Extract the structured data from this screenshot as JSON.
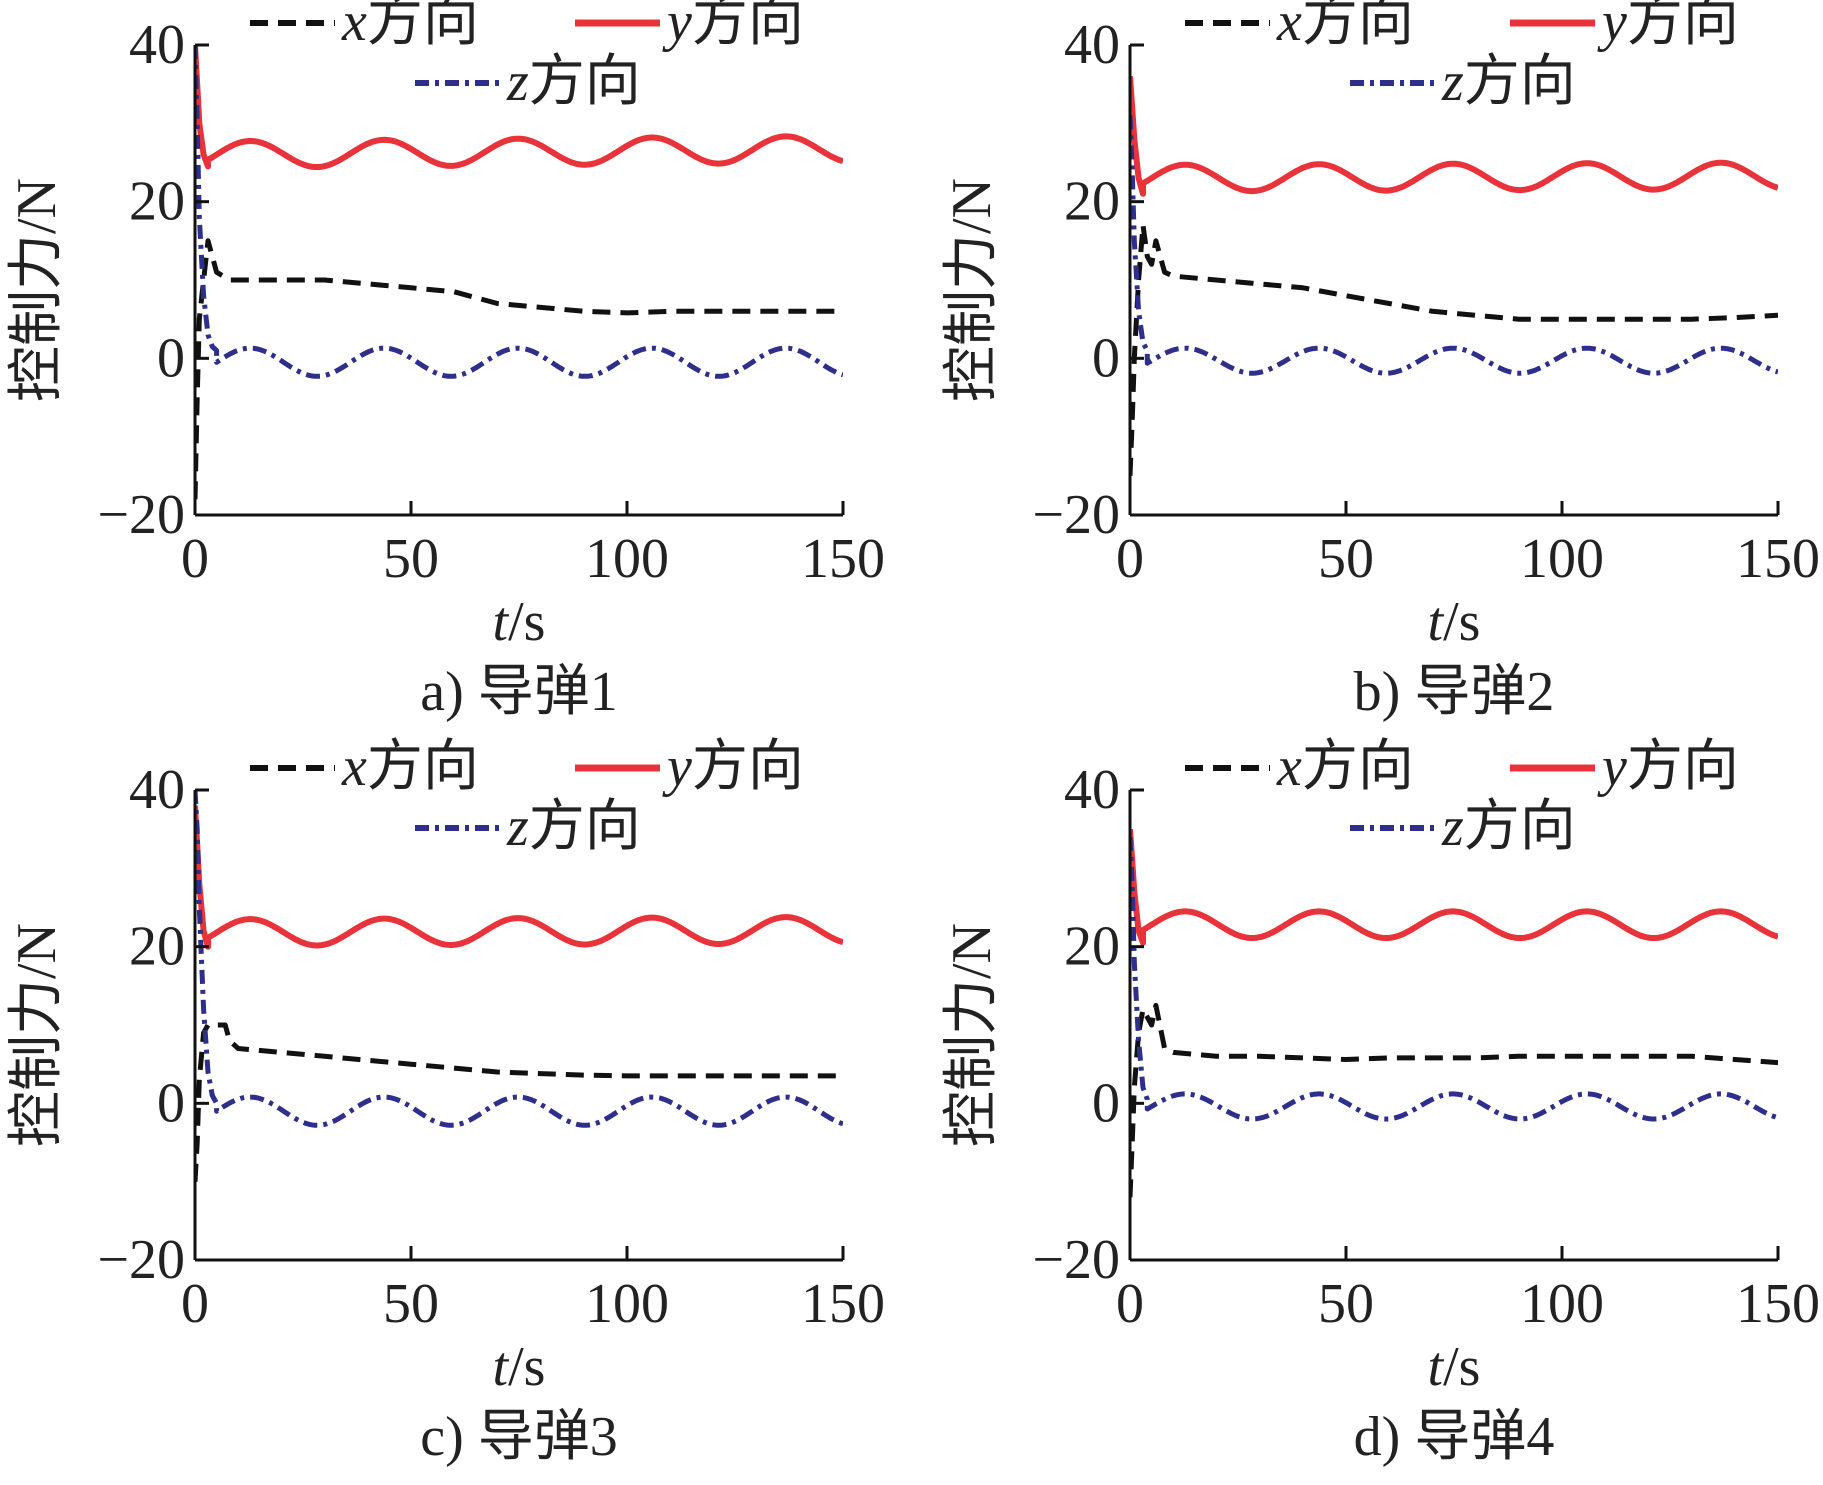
{
  "colors": {
    "x": "#111111",
    "y": "#e8333a",
    "z": "#2e2e8c",
    "axis": "#111111"
  },
  "legend": {
    "x": "x方向",
    "y": "y方向",
    "z": "z方向"
  },
  "chart_data": [
    {
      "type": "line",
      "caption": "a) 导弹1",
      "xlabel": "t/s",
      "ylabel": "控制力/N",
      "xlim": [
        0,
        150
      ],
      "ylim": [
        -20,
        40
      ],
      "xticks": [
        0,
        50,
        100,
        150
      ],
      "yticks": [
        -20,
        0,
        20,
        40
      ],
      "legend": "top",
      "series": [
        {
          "name": "x方向",
          "dash": "dashed",
          "x": [
            0,
            0.5,
            1,
            2,
            3,
            4,
            5,
            8,
            10,
            20,
            30,
            40,
            50,
            60,
            70,
            80,
            90,
            100,
            110,
            120,
            130,
            140,
            150
          ],
          "y": [
            -18,
            -5,
            5,
            10,
            15,
            13,
            11,
            10,
            10,
            10,
            10,
            9.5,
            9,
            8.5,
            7,
            6.5,
            6,
            5.8,
            6,
            6,
            6,
            6,
            6
          ]
        },
        {
          "name": "y方向",
          "dash": "solid",
          "x": [
            0,
            0.5,
            1,
            2,
            3
          ],
          "y": [
            40,
            35,
            30,
            26,
            24.5
          ],
          "wave": {
            "start": 3,
            "end": 150,
            "center": 26,
            "amp": 1.7,
            "period": 31,
            "phase": 160,
            "drift": 0.7
          }
        },
        {
          "name": "z方向",
          "dash": "dashdot",
          "x": [
            0,
            0.5,
            1,
            2,
            3,
            4,
            5
          ],
          "y": [
            40,
            30,
            18,
            8,
            3,
            1.5,
            1
          ],
          "wave": {
            "start": 5,
            "end": 150,
            "center": -0.5,
            "amp": 1.8,
            "period": 31,
            "phase": 160,
            "drift": 0
          }
        }
      ]
    },
    {
      "type": "line",
      "caption": "b) 导弹2",
      "xlabel": "t/s",
      "ylabel": "控制力/N",
      "xlim": [
        0,
        150
      ],
      "ylim": [
        -20,
        40
      ],
      "xticks": [
        0,
        50,
        100,
        150
      ],
      "yticks": [
        -20,
        0,
        20,
        40
      ],
      "legend": "top",
      "series": [
        {
          "name": "x方向",
          "dash": "dashed",
          "x": [
            0,
            0.5,
            1,
            2,
            3,
            4,
            5,
            6,
            8,
            10,
            20,
            30,
            40,
            50,
            60,
            70,
            80,
            90,
            100,
            110,
            120,
            130,
            140,
            150
          ],
          "y": [
            -15,
            -8,
            0,
            10,
            17,
            13,
            12,
            15,
            11,
            10.5,
            10,
            9.5,
            9,
            8,
            7,
            6,
            5.5,
            5,
            5,
            5,
            5,
            5,
            5.2,
            5.5
          ]
        },
        {
          "name": "y方向",
          "dash": "solid",
          "x": [
            0,
            0.5,
            1,
            2,
            3
          ],
          "y": [
            36,
            32,
            28,
            23,
            21
          ],
          "wave": {
            "start": 3,
            "end": 150,
            "center": 23,
            "amp": 1.7,
            "period": 31,
            "phase": 160,
            "drift": 0.3
          }
        },
        {
          "name": "z方向",
          "dash": "dashdot",
          "x": [
            0,
            0.5,
            1,
            2,
            3,
            4
          ],
          "y": [
            31,
            24,
            15,
            6,
            2,
            1
          ],
          "wave": {
            "start": 4,
            "end": 150,
            "center": -0.3,
            "amp": 1.6,
            "period": 31,
            "phase": 160,
            "drift": 0
          }
        }
      ]
    },
    {
      "type": "line",
      "caption": "c) 导弹3",
      "xlabel": "t/s",
      "ylabel": "控制力/N",
      "xlim": [
        0,
        150
      ],
      "ylim": [
        -20,
        40
      ],
      "xticks": [
        0,
        50,
        100,
        150
      ],
      "yticks": [
        -20,
        0,
        20,
        40
      ],
      "legend": "top",
      "series": [
        {
          "name": "x方向",
          "dash": "dashed",
          "x": [
            0,
            0.5,
            1,
            2,
            3,
            5,
            7,
            8,
            10,
            20,
            30,
            40,
            50,
            60,
            70,
            80,
            90,
            100,
            110,
            120,
            130,
            140,
            150
          ],
          "y": [
            -10,
            -5,
            3,
            9,
            10,
            10,
            10,
            8,
            7,
            6.5,
            6,
            5.5,
            5,
            4.5,
            4,
            3.8,
            3.6,
            3.5,
            3.5,
            3.5,
            3.5,
            3.5,
            3.5
          ]
        },
        {
          "name": "y方向",
          "dash": "solid",
          "x": [
            0,
            0.5,
            1,
            2,
            3
          ],
          "y": [
            38,
            33,
            28,
            22,
            20
          ],
          "wave": {
            "start": 3,
            "end": 150,
            "center": 21.8,
            "amp": 1.7,
            "period": 31,
            "phase": 160,
            "drift": 0.3
          }
        },
        {
          "name": "z方向",
          "dash": "dashdot",
          "x": [
            0,
            0.5,
            1,
            2,
            3,
            4,
            5
          ],
          "y": [
            40,
            35,
            25,
            12,
            4,
            1,
            0
          ],
          "wave": {
            "start": 5,
            "end": 150,
            "center": -1,
            "amp": 1.8,
            "period": 31,
            "phase": 160,
            "drift": 0
          }
        }
      ]
    },
    {
      "type": "line",
      "caption": "d) 导弹4",
      "xlabel": "t/s",
      "ylabel": "控制力/N",
      "xlim": [
        0,
        150
      ],
      "ylim": [
        -20,
        40
      ],
      "xticks": [
        0,
        50,
        100,
        150
      ],
      "yticks": [
        -20,
        0,
        20,
        40
      ],
      "legend": "top",
      "series": [
        {
          "name": "x方向",
          "dash": "dashed",
          "x": [
            0,
            0.5,
            1,
            2,
            3,
            4,
            5,
            6,
            8,
            10,
            20,
            30,
            40,
            50,
            60,
            70,
            80,
            90,
            100,
            110,
            120,
            130,
            140,
            150
          ],
          "y": [
            -12,
            -5,
            2,
            9,
            12,
            11,
            10,
            12.5,
            7,
            6.5,
            6,
            6,
            5.8,
            5.6,
            5.8,
            5.8,
            5.8,
            6,
            6,
            6,
            6,
            6,
            5.6,
            5.2
          ]
        },
        {
          "name": "y方向",
          "dash": "solid",
          "x": [
            0,
            0.5,
            1,
            2,
            3
          ],
          "y": [
            35,
            31,
            27,
            22,
            20.5
          ],
          "wave": {
            "start": 3,
            "end": 150,
            "center": 22.8,
            "amp": 1.7,
            "period": 31,
            "phase": 160,
            "drift": 0
          }
        },
        {
          "name": "z方向",
          "dash": "dashdot",
          "x": [
            0,
            0.5,
            1,
            2,
            3,
            4
          ],
          "y": [
            34,
            28,
            18,
            8,
            2,
            0.5
          ],
          "wave": {
            "start": 4,
            "end": 150,
            "center": -0.4,
            "amp": 1.6,
            "period": 31,
            "phase": 160,
            "drift": 0
          }
        }
      ]
    }
  ]
}
